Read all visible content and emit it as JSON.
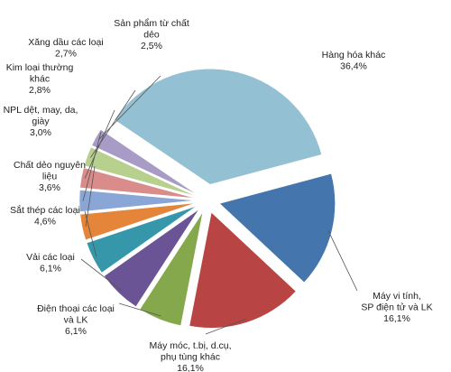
{
  "chart_data": {
    "type": "pie",
    "title": "",
    "legend": "none",
    "exploded": true,
    "slices": [
      {
        "label": "Hàng hóa khác",
        "value": 36.4,
        "value_text": "36,4%",
        "color": "#93c0d3"
      },
      {
        "label": "Máy vi tính, SP điện tử và LK",
        "value": 16.1,
        "value_text": "16,1%",
        "color": "#4575ad"
      },
      {
        "label": "Máy móc, t.bị, d.cụ, phụ tùng khác",
        "value": 16.1,
        "value_text": "16,1%",
        "color": "#b84543"
      },
      {
        "label": "Điện thoại các loại và LK",
        "value": 6.1,
        "value_text": "6,1%",
        "color": "#86a84c"
      },
      {
        "label": "Vải các loại",
        "value": 6.1,
        "value_text": "6,1%",
        "color": "#6a5496"
      },
      {
        "label": "Sắt thép các loại",
        "value": 4.6,
        "value_text": "4,6%",
        "color": "#3697ab"
      },
      {
        "label": "Chất dẻo nguyên liệu",
        "value": 3.6,
        "value_text": "3,6%",
        "color": "#e5853a"
      },
      {
        "label": "NPL dệt, may, da, giày",
        "value": 3.0,
        "value_text": "3,0%",
        "color": "#8aa6d6"
      },
      {
        "label": "Kim loại thường khác",
        "value": 2.8,
        "value_text": "2,8%",
        "color": "#d98c8a"
      },
      {
        "label": "Xăng dầu các loại",
        "value": 2.7,
        "value_text": "2,7%",
        "color": "#b8d08d"
      },
      {
        "label": "Sản phẩm từ chất dẻo",
        "value": 2.5,
        "value_text": "2,5%",
        "color": "#a89cc6"
      }
    ]
  }
}
